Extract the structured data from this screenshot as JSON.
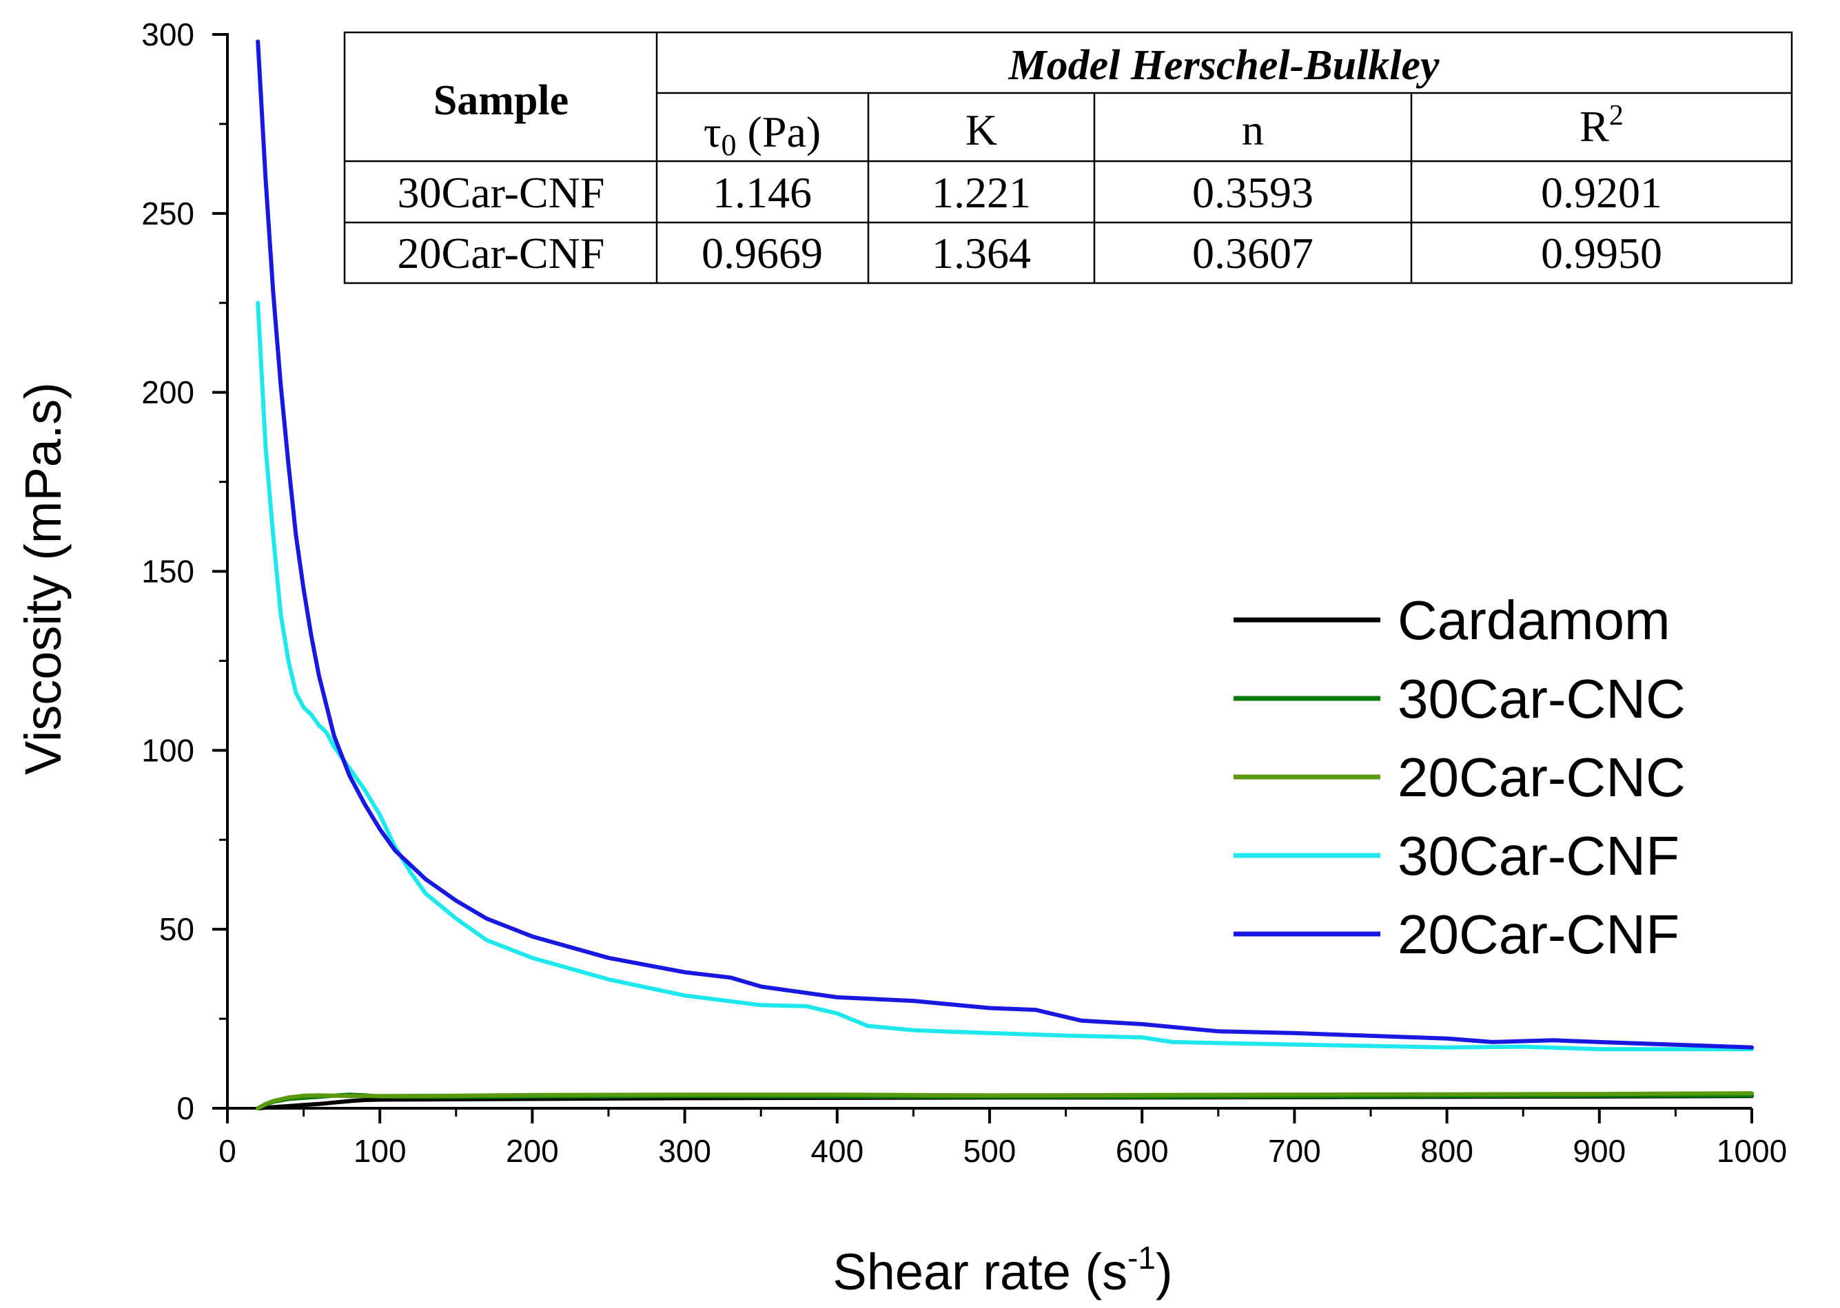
{
  "chart_data": {
    "type": "line",
    "xlabel": "Shear rate (s",
    "xlabel_sup": "-1",
    "xlabel_end": ")",
    "ylabel": "Viscosity (mPa.s)",
    "xlim": [
      0,
      1000
    ],
    "ylim": [
      0,
      300
    ],
    "xticks": [
      0,
      100,
      200,
      300,
      400,
      500,
      600,
      700,
      800,
      900,
      1000
    ],
    "yticks": [
      0,
      50,
      100,
      150,
      200,
      250,
      300
    ],
    "grid": false,
    "legend_position": "center-right",
    "series": [
      {
        "name": "Cardamom",
        "color": "#000000",
        "points": [
          [
            20,
            0
          ],
          [
            30,
            0.3
          ],
          [
            40,
            0.6
          ],
          [
            50,
            0.9
          ],
          [
            60,
            1.2
          ],
          [
            70,
            1.6
          ],
          [
            80,
            2.0
          ],
          [
            90,
            2.3
          ],
          [
            100,
            2.4
          ],
          [
            150,
            2.5
          ],
          [
            200,
            2.6
          ],
          [
            300,
            2.8
          ],
          [
            400,
            2.9
          ],
          [
            500,
            3.0
          ],
          [
            600,
            3.0
          ],
          [
            700,
            3.1
          ],
          [
            800,
            3.2
          ],
          [
            900,
            3.3
          ],
          [
            1000,
            3.4
          ]
        ]
      },
      {
        "name": "30Car-CNC",
        "color": "#0a7a0a",
        "points": [
          [
            20,
            0
          ],
          [
            25,
            1.0
          ],
          [
            30,
            1.8
          ],
          [
            40,
            2.6
          ],
          [
            50,
            2.9
          ],
          [
            60,
            3.2
          ],
          [
            70,
            3.5
          ],
          [
            80,
            3.8
          ],
          [
            90,
            3.6
          ],
          [
            100,
            3.3
          ],
          [
            120,
            3.2
          ],
          [
            150,
            3.2
          ],
          [
            200,
            3.3
          ],
          [
            300,
            3.4
          ],
          [
            400,
            3.3
          ],
          [
            500,
            3.2
          ],
          [
            600,
            3.2
          ],
          [
            700,
            3.3
          ],
          [
            800,
            3.4
          ],
          [
            900,
            3.5
          ],
          [
            1000,
            3.6
          ]
        ]
      },
      {
        "name": "20Car-CNC",
        "color": "#5a9a10",
        "points": [
          [
            20,
            0
          ],
          [
            25,
            1.2
          ],
          [
            30,
            2.0
          ],
          [
            40,
            3.0
          ],
          [
            50,
            3.5
          ],
          [
            60,
            3.6
          ],
          [
            70,
            3.5
          ],
          [
            80,
            3.4
          ],
          [
            100,
            3.4
          ],
          [
            150,
            3.5
          ],
          [
            200,
            3.7
          ],
          [
            300,
            3.8
          ],
          [
            400,
            3.8
          ],
          [
            500,
            3.6
          ],
          [
            600,
            3.7
          ],
          [
            700,
            3.8
          ],
          [
            800,
            3.9
          ],
          [
            900,
            4.0
          ],
          [
            1000,
            4.2
          ]
        ]
      },
      {
        "name": "30Car-CNF",
        "color": "#1ee8ee",
        "points": [
          [
            20,
            225
          ],
          [
            25,
            185
          ],
          [
            30,
            160
          ],
          [
            35,
            138
          ],
          [
            40,
            125
          ],
          [
            45,
            116
          ],
          [
            50,
            112
          ],
          [
            55,
            110
          ],
          [
            60,
            107
          ],
          [
            65,
            105
          ],
          [
            70,
            101
          ],
          [
            80,
            95
          ],
          [
            90,
            89
          ],
          [
            100,
            82
          ],
          [
            110,
            73
          ],
          [
            120,
            66
          ],
          [
            130,
            60
          ],
          [
            150,
            53
          ],
          [
            170,
            47
          ],
          [
            200,
            42
          ],
          [
            250,
            36
          ],
          [
            300,
            31.5
          ],
          [
            350,
            28.8
          ],
          [
            380,
            28.5
          ],
          [
            400,
            26.5
          ],
          [
            420,
            23
          ],
          [
            450,
            21.8
          ],
          [
            500,
            21
          ],
          [
            550,
            20.3
          ],
          [
            600,
            19.8
          ],
          [
            620,
            18.5
          ],
          [
            700,
            17.8
          ],
          [
            800,
            17
          ],
          [
            850,
            17.2
          ],
          [
            900,
            16.5
          ],
          [
            950,
            16.5
          ],
          [
            1000,
            16.5
          ]
        ]
      },
      {
        "name": "20Car-CNF",
        "color": "#1818e0",
        "points": [
          [
            20,
            298
          ],
          [
            25,
            260
          ],
          [
            30,
            228
          ],
          [
            35,
            202
          ],
          [
            40,
            180
          ],
          [
            45,
            160
          ],
          [
            50,
            145
          ],
          [
            55,
            132
          ],
          [
            60,
            121
          ],
          [
            70,
            104
          ],
          [
            80,
            93
          ],
          [
            90,
            85
          ],
          [
            100,
            78
          ],
          [
            110,
            72
          ],
          [
            120,
            68
          ],
          [
            130,
            64
          ],
          [
            150,
            58
          ],
          [
            170,
            53
          ],
          [
            200,
            48
          ],
          [
            250,
            42
          ],
          [
            300,
            38
          ],
          [
            330,
            36.5
          ],
          [
            350,
            34
          ],
          [
            400,
            31
          ],
          [
            450,
            30
          ],
          [
            500,
            28
          ],
          [
            530,
            27.5
          ],
          [
            560,
            24.5
          ],
          [
            600,
            23.5
          ],
          [
            650,
            21.5
          ],
          [
            700,
            21
          ],
          [
            800,
            19.5
          ],
          [
            830,
            18.5
          ],
          [
            870,
            19
          ],
          [
            900,
            18.5
          ],
          [
            1000,
            17
          ]
        ]
      }
    ],
    "table": {
      "header_sample": "Sample",
      "header_model": "Model Herschel-Bulkley",
      "col_tau_symbol": "τ",
      "col_tau_sub": "0",
      "col_tau_unit": " (Pa)",
      "col_k": "K",
      "col_n": "n",
      "col_r2_base": "R",
      "col_r2_sup": "2",
      "rows": [
        {
          "sample": "30Car-CNF",
          "tau0": "1.146",
          "k": "1.221",
          "n": "0.3593",
          "r2": "0.9201"
        },
        {
          "sample": "20Car-CNF",
          "tau0": "0.9669",
          "k": "1.364",
          "n": "0.3607",
          "r2": "0.9950"
        }
      ]
    }
  }
}
